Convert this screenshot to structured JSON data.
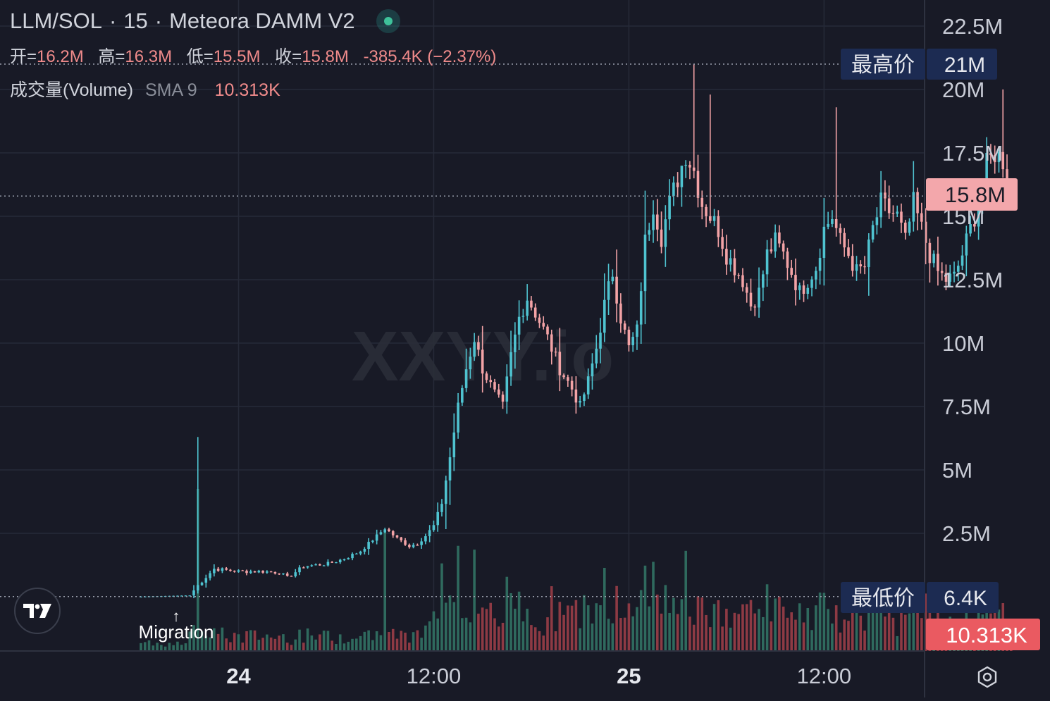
{
  "header": {
    "pair": "LLM/SOL",
    "interval": "15",
    "exchange": "Meteora DAMM V2",
    "separator": "·"
  },
  "ohlc": {
    "open_label": "开=",
    "open": "16.2M",
    "high_label": "高=",
    "high": "16.3M",
    "low_label": "低=",
    "low": "15.5M",
    "close_label": "收=",
    "close": "15.8M",
    "change": "-385.4K (−2.37%)"
  },
  "volume_indicator": {
    "name": "成交量(Volume)",
    "sma": "SMA 9",
    "value": "10.313K"
  },
  "watermark": "XXYY.io",
  "markers": {
    "high_label": "最高价",
    "high_value": "21M",
    "low_label": "最低价",
    "low_value": "6.4K",
    "current_price": "15.8M",
    "current_volume": "10.313K",
    "migration_arrow": "↑",
    "migration_label": "Migration"
  },
  "icons": {
    "logo": "tradingview-logo-icon",
    "settings": "settings-icon",
    "status": "live-status-dot-icon"
  },
  "colors": {
    "background": "#181a26",
    "up": "#4fc3d0",
    "down": "#f3a3a6",
    "vol_up": "#2f6a5e",
    "vol_down": "#8e3a44",
    "grid": "#262a38",
    "label_blue": "#1c2b52",
    "label_pink": "#f3a7ab",
    "label_red": "#ea5a61"
  },
  "chart_data": {
    "type": "candlestick",
    "y_unit": "USD market cap",
    "y_ticks": [
      {
        "value": 2500000,
        "label": "2.5M"
      },
      {
        "value": 5000000,
        "label": "5M"
      },
      {
        "value": 7500000,
        "label": "7.5M"
      },
      {
        "value": 10000000,
        "label": "10M"
      },
      {
        "value": 12500000,
        "label": "12.5M"
      },
      {
        "value": 15000000,
        "label": "15M"
      },
      {
        "value": 17500000,
        "label": "17.5M"
      },
      {
        "value": 20000000,
        "label": "20M"
      },
      {
        "value": 22500000,
        "label": "22.5M"
      }
    ],
    "x_ticks": [
      {
        "label": "24",
        "bold": true,
        "index": 24
      },
      {
        "label": "12:00",
        "bold": false,
        "index": 72
      },
      {
        "label": "25",
        "bold": true,
        "index": 120
      },
      {
        "label": "12:00",
        "bold": false,
        "index": 168
      }
    ],
    "x_index_range": [
      -22,
      230
    ],
    "y_range": [
      -2200000,
      24000000
    ],
    "migration_index": 8,
    "high_value": 21000000,
    "low_value": 6400,
    "last_price": 15800000,
    "key_points": [
      [
        0,
        0.006
      ],
      [
        12,
        0.05
      ],
      [
        14,
        0.45
      ],
      [
        18,
        1.1
      ],
      [
        24,
        1.0
      ],
      [
        30,
        1.0
      ],
      [
        34,
        0.95
      ],
      [
        36,
        0.75
      ],
      [
        40,
        1.2
      ],
      [
        46,
        1.3
      ],
      [
        50,
        1.5
      ],
      [
        54,
        1.8
      ],
      [
        58,
        2.4
      ],
      [
        60,
        2.7
      ],
      [
        63,
        2.3
      ],
      [
        66,
        2.0
      ],
      [
        68,
        2.1
      ],
      [
        70,
        2.4
      ],
      [
        72,
        2.8
      ],
      [
        74,
        3.7
      ],
      [
        76,
        5.5
      ],
      [
        78,
        7.5
      ],
      [
        80,
        9.0
      ],
      [
        82,
        10.2
      ],
      [
        84,
        9.0
      ],
      [
        87,
        8.0
      ],
      [
        89,
        7.5
      ],
      [
        91,
        9.5
      ],
      [
        93,
        11.0
      ],
      [
        95,
        11.8
      ],
      [
        97,
        11.2
      ],
      [
        100,
        10.2
      ],
      [
        103,
        9.0
      ],
      [
        106,
        8.2
      ],
      [
        108,
        7.5
      ],
      [
        110,
        8.5
      ],
      [
        112,
        9.8
      ],
      [
        114,
        11.5
      ],
      [
        116,
        12.8
      ],
      [
        118,
        11.0
      ],
      [
        120,
        9.8
      ],
      [
        122,
        10.5
      ],
      [
        124,
        14.0
      ],
      [
        126,
        15.5
      ],
      [
        128,
        14.2
      ],
      [
        130,
        15.5
      ],
      [
        132,
        16.5
      ],
      [
        134,
        17.5
      ],
      [
        136,
        16.8
      ],
      [
        138,
        15.5
      ],
      [
        140,
        15.0
      ],
      [
        142,
        14.5
      ],
      [
        144,
        13.5
      ],
      [
        146,
        13.0
      ],
      [
        148,
        12.5
      ],
      [
        150,
        11.5
      ],
      [
        152,
        12.0
      ],
      [
        154,
        13.5
      ],
      [
        156,
        14.0
      ],
      [
        158,
        13.5
      ],
      [
        160,
        12.8
      ],
      [
        162,
        12.0
      ],
      [
        164,
        12.5
      ],
      [
        166,
        13.0
      ],
      [
        168,
        14.5
      ],
      [
        170,
        15.0
      ],
      [
        172,
        14.0
      ],
      [
        174,
        13.5
      ],
      [
        176,
        12.8
      ],
      [
        178,
        13.0
      ],
      [
        180,
        14.5
      ],
      [
        182,
        15.5
      ],
      [
        184,
        15.2
      ],
      [
        186,
        15.0
      ],
      [
        188,
        14.0
      ],
      [
        190,
        15.5
      ],
      [
        192,
        14.5
      ],
      [
        194,
        13.5
      ],
      [
        196,
        12.8
      ],
      [
        198,
        12.5
      ],
      [
        200,
        12.6
      ],
      [
        202,
        13.5
      ],
      [
        204,
        14.5
      ],
      [
        206,
        15.5
      ],
      [
        208,
        17.0
      ],
      [
        210,
        17.5
      ],
      [
        212,
        17.2
      ],
      [
        213,
        16.5
      ],
      [
        214,
        15.8
      ]
    ],
    "spikes_high": [
      [
        14,
        6.3
      ],
      [
        133,
        16.9
      ],
      [
        136,
        21.0
      ],
      [
        140,
        19.8
      ],
      [
        212,
        20.0
      ],
      [
        171,
        19.3
      ]
    ]
  }
}
